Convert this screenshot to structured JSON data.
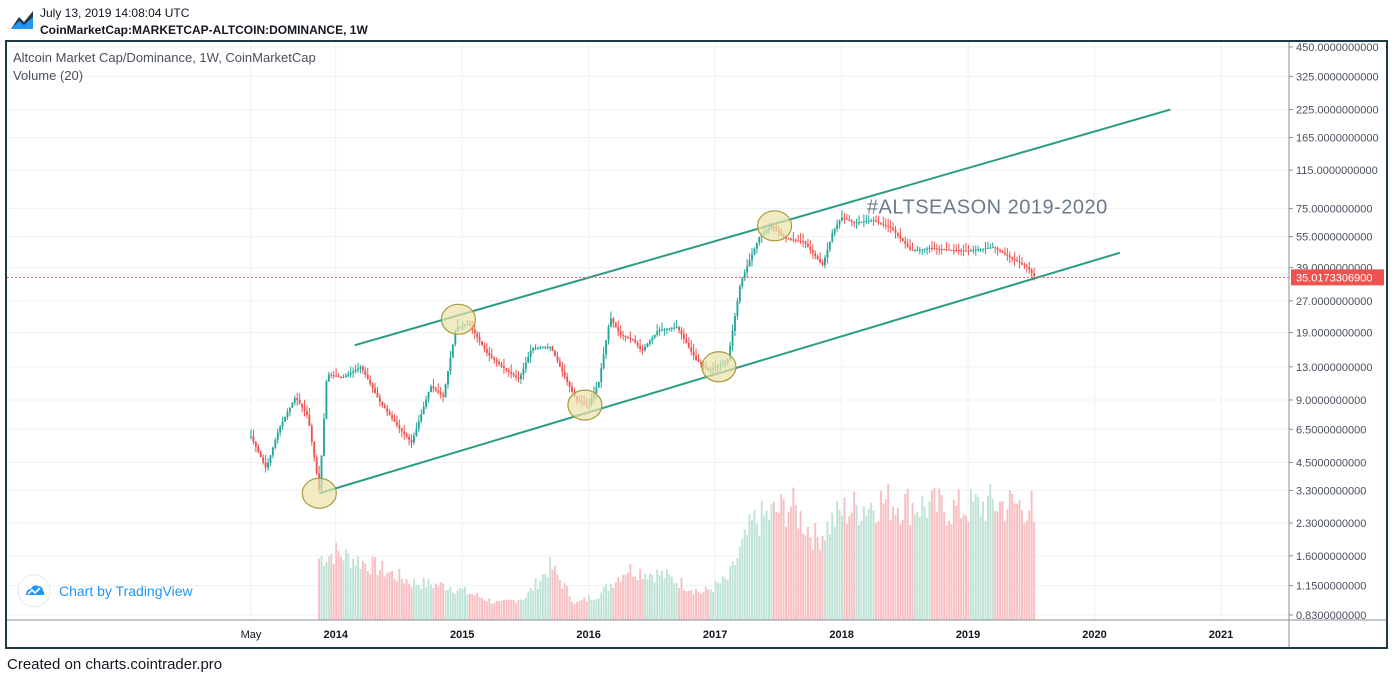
{
  "header": {
    "timestamp": "July 13, 2019 14:08:04 UTC",
    "symbol": "CoinMarketCap:MARKETCAP-ALTCOIN:DOMINANCE, 1W"
  },
  "legend": {
    "title": "Altcoin Market Cap/Dominance, 1W, CoinMarketCap",
    "volume": "Volume (20)"
  },
  "watermark": {
    "text": "Chart by TradingView",
    "icon": "tradingview-cloud-icon"
  },
  "footer": {
    "text": "Created on charts.cointrader.pro"
  },
  "annotation": {
    "text": "#ALTSEASON 2019-2020",
    "color": "#6b7b8c"
  },
  "colors": {
    "up": "#26a69a",
    "down": "#ef5350",
    "vol_up": "#bfe3d4",
    "vol_down": "#f7bfc2",
    "channel": "#2a9d82",
    "circle_fill": "#e9e2a8",
    "circle_stroke": "#a99a3a",
    "price_line": "#ef5350",
    "grid": "#eef1f5",
    "frame": "#1f3a46"
  },
  "chart_data": {
    "type": "candlestick",
    "title": "Altcoin Market Cap/Dominance, 1W, CoinMarketCap",
    "scale": "log",
    "ylim": [
      0.83,
      450
    ],
    "x_tick_labels": [
      "May",
      "2014",
      "2015",
      "2016",
      "2017",
      "2018",
      "2019",
      "2020",
      "2021"
    ],
    "x_tick_dates": [
      2013.33,
      2014.0,
      2015.0,
      2016.0,
      2017.0,
      2018.0,
      2019.0,
      2020.0,
      2021.0
    ],
    "y_tick_labels": [
      "450.0000000000",
      "325.0000000000",
      "225.0000000000",
      "165.0000000000",
      "115.0000000000",
      "75.0000000000",
      "55.0000000000",
      "39.0000000000",
      "27.0000000000",
      "19.0000000000",
      "13.0000000000",
      "9.0000000000",
      "6.5000000000",
      "4.5000000000",
      "3.3000000000",
      "2.3000000000",
      "1.6000000000",
      "1.1500000000",
      "0.8300000000"
    ],
    "y_tick_values": [
      450,
      325,
      225,
      165,
      115,
      75,
      55,
      39,
      27,
      19,
      13,
      9,
      6.5,
      4.5,
      3.3,
      2.3,
      1.6,
      1.15,
      0.83
    ],
    "last_price": 35.01733069,
    "last_price_label": "35.0173306900",
    "price_path": [
      [
        2013.33,
        6.0
      ],
      [
        2013.45,
        4.2
      ],
      [
        2013.55,
        6.5
      ],
      [
        2013.68,
        9.3
      ],
      [
        2013.78,
        7.5
      ],
      [
        2013.87,
        3.3
      ],
      [
        2013.93,
        12.0
      ],
      [
        2014.05,
        11.5
      ],
      [
        2014.2,
        13.0
      ],
      [
        2014.35,
        8.8
      ],
      [
        2014.5,
        6.6
      ],
      [
        2014.6,
        5.6
      ],
      [
        2014.75,
        10.5
      ],
      [
        2014.85,
        9.3
      ],
      [
        2014.95,
        20.0
      ],
      [
        2015.05,
        21.0
      ],
      [
        2015.2,
        15.0
      ],
      [
        2015.35,
        12.5
      ],
      [
        2015.45,
        11.3
      ],
      [
        2015.55,
        16.0
      ],
      [
        2015.7,
        16.2
      ],
      [
        2015.8,
        12.0
      ],
      [
        2015.9,
        9.0
      ],
      [
        2016.0,
        8.5
      ],
      [
        2016.08,
        11.0
      ],
      [
        2016.17,
        22.5
      ],
      [
        2016.25,
        18.5
      ],
      [
        2016.35,
        17.5
      ],
      [
        2016.42,
        15.5
      ],
      [
        2016.55,
        19.5
      ],
      [
        2016.7,
        20.2
      ],
      [
        2016.85,
        14.0
      ],
      [
        2016.95,
        12.5
      ],
      [
        2017.1,
        14.0
      ],
      [
        2017.2,
        33.0
      ],
      [
        2017.35,
        55.0
      ],
      [
        2017.45,
        62.0
      ],
      [
        2017.55,
        54.0
      ],
      [
        2017.7,
        52.0
      ],
      [
        2017.85,
        40.0
      ],
      [
        2017.93,
        58.0
      ],
      [
        2018.0,
        68.0
      ],
      [
        2018.1,
        64.0
      ],
      [
        2018.25,
        66.0
      ],
      [
        2018.4,
        60.0
      ],
      [
        2018.55,
        47.0
      ],
      [
        2018.7,
        48.5
      ],
      [
        2018.85,
        47.5
      ],
      [
        2019.0,
        47.0
      ],
      [
        2019.2,
        49.0
      ],
      [
        2019.35,
        43.0
      ],
      [
        2019.47,
        39.0
      ],
      [
        2019.53,
        35.0
      ]
    ],
    "volume_envelope": [
      [
        2013.85,
        0.45
      ],
      [
        2014.0,
        0.5
      ],
      [
        2014.3,
        0.4
      ],
      [
        2014.6,
        0.28
      ],
      [
        2014.9,
        0.25
      ],
      [
        2015.3,
        0.12
      ],
      [
        2015.5,
        0.17
      ],
      [
        2015.7,
        0.4
      ],
      [
        2015.9,
        0.12
      ],
      [
        2016.1,
        0.2
      ],
      [
        2016.3,
        0.38
      ],
      [
        2016.6,
        0.33
      ],
      [
        2016.9,
        0.2
      ],
      [
        2017.1,
        0.3
      ],
      [
        2017.3,
        0.72
      ],
      [
        2017.6,
        0.85
      ],
      [
        2017.8,
        0.6
      ],
      [
        2018.0,
        0.8
      ],
      [
        2018.3,
        0.88
      ],
      [
        2018.6,
        0.85
      ],
      [
        2018.9,
        0.82
      ],
      [
        2019.2,
        0.86
      ],
      [
        2019.5,
        0.85
      ],
      [
        2019.53,
        0.6
      ]
    ],
    "channel_upper": [
      [
        2014.15,
        16.5
      ],
      [
        2020.6,
        225.0
      ]
    ],
    "channel_lower": [
      [
        2013.87,
        3.2
      ],
      [
        2020.2,
        46.0
      ]
    ],
    "highlights": [
      {
        "x": 2013.87,
        "y": 3.2
      },
      {
        "x": 2014.97,
        "y": 22.0
      },
      {
        "x": 2015.97,
        "y": 8.5
      },
      {
        "x": 2017.03,
        "y": 13.0
      },
      {
        "x": 2017.47,
        "y": 62.0
      }
    ]
  }
}
